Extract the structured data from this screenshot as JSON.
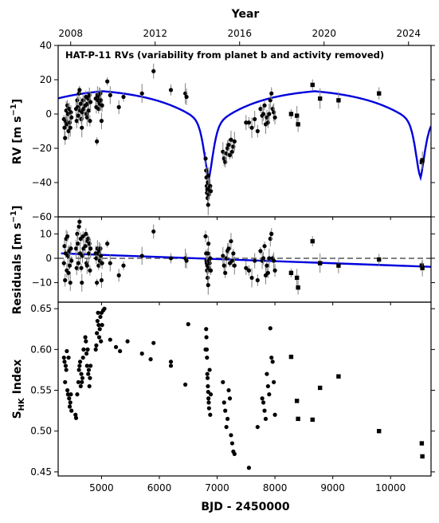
{
  "chart_data": [
    {
      "type": "scatter",
      "panel": "rv",
      "annotation": "HAT-P-11 RVs (variability from planet b and activity removed)",
      "ylabel_main": "RV [m s",
      "ylabel_sup": "−1",
      "ylabel_end": "]",
      "ylim": [
        -60,
        40
      ],
      "yticks": [
        "40",
        "20",
        "0",
        "−20",
        "−40",
        "−60"
      ],
      "ytick_values": [
        40,
        20,
        0,
        -20,
        -40,
        -60
      ],
      "grid": false,
      "model_color": "#0000dd",
      "points": [
        [
          4350,
          -3
        ],
        [
          4360,
          -8
        ],
        [
          4370,
          -14
        ],
        [
          4380,
          -4
        ],
        [
          4390,
          2
        ],
        [
          4400,
          -6
        ],
        [
          4410,
          5
        ],
        [
          4420,
          0
        ],
        [
          4430,
          -10
        ],
        [
          4440,
          3
        ],
        [
          4450,
          -5
        ],
        [
          4460,
          -8
        ],
        [
          4470,
          1
        ],
        [
          4480,
          -2
        ],
        [
          4560,
          3
        ],
        [
          4570,
          -4
        ],
        [
          4580,
          8
        ],
        [
          4590,
          4
        ],
        [
          4600,
          -1
        ],
        [
          4610,
          12
        ],
        [
          4620,
          14
        ],
        [
          4630,
          2
        ],
        [
          4640,
          6
        ],
        [
          4650,
          -3
        ],
        [
          4660,
          -8
        ],
        [
          4670,
          1
        ],
        [
          4680,
          8
        ],
        [
          4690,
          3
        ],
        [
          4720,
          5
        ],
        [
          4730,
          10
        ],
        [
          4740,
          0
        ],
        [
          4750,
          -2
        ],
        [
          4760,
          6
        ],
        [
          4770,
          9
        ],
        [
          4780,
          2
        ],
        [
          4790,
          11
        ],
        [
          4800,
          -4
        ],
        [
          4810,
          7
        ],
        [
          4900,
          9
        ],
        [
          4910,
          4
        ],
        [
          4920,
          -16
        ],
        [
          4930,
          11
        ],
        [
          4940,
          8
        ],
        [
          4950,
          3
        ],
        [
          4960,
          10
        ],
        [
          4970,
          6
        ],
        [
          4980,
          12
        ],
        [
          4990,
          8
        ],
        [
          5000,
          -4
        ],
        [
          5010,
          5
        ],
        [
          5100,
          19
        ],
        [
          5150,
          11
        ],
        [
          5300,
          4
        ],
        [
          5380,
          10
        ],
        [
          5700,
          12
        ],
        [
          5900,
          25
        ],
        [
          6200,
          14
        ],
        [
          6450,
          12
        ],
        [
          6470,
          10
        ],
        [
          6800,
          -26
        ],
        [
          6810,
          -33
        ],
        [
          6815,
          -37
        ],
        [
          6820,
          -42
        ],
        [
          6825,
          -46
        ],
        [
          6830,
          -44
        ],
        [
          6835,
          -49
        ],
        [
          6840,
          -40
        ],
        [
          6845,
          -53
        ],
        [
          6850,
          -36
        ],
        [
          6855,
          -47
        ],
        [
          6860,
          -44
        ],
        [
          6870,
          -43
        ],
        [
          6880,
          -42
        ],
        [
          6890,
          -45
        ],
        [
          7100,
          -22
        ],
        [
          7120,
          -26
        ],
        [
          7140,
          -28
        ],
        [
          7160,
          -23
        ],
        [
          7180,
          -20
        ],
        [
          7200,
          -18
        ],
        [
          7220,
          -24
        ],
        [
          7240,
          -15
        ],
        [
          7260,
          -22
        ],
        [
          7280,
          -19
        ],
        [
          7300,
          -16
        ],
        [
          7500,
          -5
        ],
        [
          7550,
          -5
        ],
        [
          7600,
          -8
        ],
        [
          7650,
          -3
        ],
        [
          7700,
          -10
        ],
        [
          7750,
          3
        ],
        [
          7780,
          -1
        ],
        [
          7800,
          0
        ],
        [
          7820,
          5
        ],
        [
          7840,
          -6
        ],
        [
          7860,
          -2
        ],
        [
          7880,
          -5
        ],
        [
          7900,
          0
        ],
        [
          7920,
          8
        ],
        [
          7940,
          12
        ],
        [
          7960,
          3
        ],
        [
          7980,
          1
        ],
        [
          8000,
          -2
        ]
      ],
      "square_points": [
        [
          8280,
          0
        ],
        [
          8380,
          -1
        ],
        [
          8400,
          -6
        ],
        [
          8650,
          17
        ],
        [
          8780,
          9
        ],
        [
          9100,
          8
        ],
        [
          9800,
          12
        ],
        [
          10540,
          -28
        ],
        [
          10550,
          -27
        ]
      ]
    },
    {
      "type": "scatter",
      "panel": "residuals",
      "ylabel": "Residuals [m s",
      "ylabel_sup": "−1",
      "ylabel_end": "]",
      "ylim": [
        -18,
        17
      ],
      "yticks": [
        "10",
        "0",
        "−10"
      ],
      "ytick_values": [
        10,
        0,
        -10
      ],
      "trend_start": [
        4300,
        2
      ],
      "trend_end": [
        10700,
        -3.5
      ],
      "points": [
        [
          4350,
          -2
        ],
        [
          4360,
          5
        ],
        [
          4370,
          -9
        ],
        [
          4380,
          2
        ],
        [
          4390,
          8
        ],
        [
          4400,
          -5
        ],
        [
          4410,
          9
        ],
        [
          4420,
          1
        ],
        [
          4430,
          -6
        ],
        [
          4440,
          3
        ],
        [
          4450,
          -3
        ],
        [
          4460,
          -10
        ],
        [
          4470,
          4
        ],
        [
          4480,
          -1
        ],
        [
          4560,
          4
        ],
        [
          4570,
          -4
        ],
        [
          4580,
          10
        ],
        [
          4590,
          6
        ],
        [
          4600,
          -2
        ],
        [
          4610,
          13
        ],
        [
          4620,
          15
        ],
        [
          4630,
          2
        ],
        [
          4640,
          8
        ],
        [
          4650,
          -4
        ],
        [
          4660,
          -10
        ],
        [
          4670,
          1
        ],
        [
          4680,
          9
        ],
        [
          4690,
          4
        ],
        [
          4720,
          5
        ],
        [
          4730,
          10
        ],
        [
          4740,
          -2
        ],
        [
          4750,
          -3
        ],
        [
          4760,
          7
        ],
        [
          4770,
          8
        ],
        [
          4780,
          2
        ],
        [
          4790,
          6
        ],
        [
          4800,
          -5
        ],
        [
          4810,
          4
        ],
        [
          4900,
          2
        ],
        [
          4910,
          0
        ],
        [
          4920,
          -10
        ],
        [
          4930,
          4
        ],
        [
          4940,
          2
        ],
        [
          4950,
          -3
        ],
        [
          4960,
          3
        ],
        [
          4970,
          -1
        ],
        [
          4980,
          4
        ],
        [
          4990,
          1
        ],
        [
          5000,
          -9
        ],
        [
          5010,
          -2
        ],
        [
          5100,
          6
        ],
        [
          5150,
          -2
        ],
        [
          5300,
          -7
        ],
        [
          5380,
          -3
        ],
        [
          5700,
          1
        ],
        [
          5900,
          11
        ],
        [
          6200,
          0
        ],
        [
          6450,
          0
        ],
        [
          6470,
          -1
        ],
        [
          6800,
          9
        ],
        [
          6810,
          2
        ],
        [
          6815,
          -1
        ],
        [
          6820,
          -2
        ],
        [
          6825,
          -5
        ],
        [
          6830,
          -3
        ],
        [
          6835,
          -8
        ],
        [
          6840,
          2
        ],
        [
          6845,
          -11
        ],
        [
          6850,
          6
        ],
        [
          6855,
          -4
        ],
        [
          6860,
          -1
        ],
        [
          6870,
          -2
        ],
        [
          6880,
          0
        ],
        [
          6890,
          -5
        ],
        [
          7100,
          1
        ],
        [
          7120,
          -3
        ],
        [
          7140,
          -6
        ],
        [
          7160,
          0
        ],
        [
          7180,
          3
        ],
        [
          7200,
          4
        ],
        [
          7220,
          -2
        ],
        [
          7240,
          7
        ],
        [
          7260,
          -1
        ],
        [
          7280,
          2
        ],
        [
          7300,
          -3
        ],
        [
          7500,
          -4
        ],
        [
          7550,
          -5
        ],
        [
          7600,
          -8
        ],
        [
          7650,
          -1
        ],
        [
          7700,
          -9
        ],
        [
          7750,
          3
        ],
        [
          7780,
          -1
        ],
        [
          7800,
          0
        ],
        [
          7820,
          5
        ],
        [
          7840,
          -7
        ],
        [
          7860,
          -3
        ],
        [
          7880,
          -6
        ],
        [
          7900,
          0
        ],
        [
          7920,
          8
        ],
        [
          7940,
          10
        ],
        [
          7960,
          0
        ],
        [
          7980,
          -1
        ],
        [
          8000,
          -5
        ]
      ],
      "square_points": [
        [
          8280,
          -6
        ],
        [
          8380,
          -8
        ],
        [
          8400,
          -12
        ],
        [
          8650,
          7
        ],
        [
          8780,
          -2
        ],
        [
          9100,
          -3
        ],
        [
          9800,
          -0.5
        ],
        [
          10540,
          -3
        ],
        [
          10550,
          -4
        ]
      ]
    },
    {
      "type": "scatter",
      "panel": "shk",
      "ylabel_main": "S",
      "ylabel_sub": "HK",
      "ylabel_end": " Index",
      "ylim": [
        0.445,
        0.658
      ],
      "yticks": [
        "0.65",
        "0.60",
        "0.55",
        "0.50",
        "0.45"
      ],
      "ytick_values": [
        0.65,
        0.6,
        0.55,
        0.5,
        0.45
      ],
      "points": [
        [
          4350,
          0.59
        ],
        [
          4360,
          0.585
        ],
        [
          4370,
          0.56
        ],
        [
          4380,
          0.58
        ],
        [
          4390,
          0.575
        ],
        [
          4400,
          0.598
        ],
        [
          4410,
          0.55
        ],
        [
          4420,
          0.545
        ],
        [
          4430,
          0.59
        ],
        [
          4440,
          0.54
        ],
        [
          4450,
          0.53
        ],
        [
          4460,
          0.535
        ],
        [
          4470,
          0.545
        ],
        [
          4480,
          0.525
        ],
        [
          4550,
          0.52
        ],
        [
          4560,
          0.516
        ],
        [
          4580,
          0.545
        ],
        [
          4600,
          0.56
        ],
        [
          4610,
          0.575
        ],
        [
          4620,
          0.58
        ],
        [
          4630,
          0.585
        ],
        [
          4640,
          0.555
        ],
        [
          4650,
          0.57
        ],
        [
          4660,
          0.56
        ],
        [
          4670,
          0.565
        ],
        [
          4680,
          0.59
        ],
        [
          4690,
          0.6
        ],
        [
          4720,
          0.615
        ],
        [
          4730,
          0.61
        ],
        [
          4740,
          0.595
        ],
        [
          4750,
          0.58
        ],
        [
          4760,
          0.6
        ],
        [
          4770,
          0.57
        ],
        [
          4780,
          0.575
        ],
        [
          4790,
          0.555
        ],
        [
          4800,
          0.565
        ],
        [
          4810,
          0.58
        ],
        [
          4900,
          0.6
        ],
        [
          4910,
          0.605
        ],
        [
          4920,
          0.62
        ],
        [
          4930,
          0.635
        ],
        [
          4940,
          0.645
        ],
        [
          4950,
          0.63
        ],
        [
          4960,
          0.615
        ],
        [
          4970,
          0.625
        ],
        [
          4980,
          0.64
        ],
        [
          4990,
          0.61
        ],
        [
          5000,
          0.645
        ],
        [
          5010,
          0.63
        ],
        [
          5030,
          0.648
        ],
        [
          5050,
          0.65
        ],
        [
          5150,
          0.612
        ],
        [
          5250,
          0.603
        ],
        [
          5320,
          0.598
        ],
        [
          5450,
          0.61
        ],
        [
          5700,
          0.595
        ],
        [
          5850,
          0.588
        ],
        [
          5900,
          0.608
        ],
        [
          6200,
          0.585
        ],
        [
          6200,
          0.58
        ],
        [
          6450,
          0.557
        ],
        [
          6500,
          0.631
        ],
        [
          6800,
          0.6
        ],
        [
          6810,
          0.625
        ],
        [
          6815,
          0.615
        ],
        [
          6820,
          0.6
        ],
        [
          6825,
          0.59
        ],
        [
          6830,
          0.57
        ],
        [
          6835,
          0.565
        ],
        [
          6840,
          0.555
        ],
        [
          6845,
          0.548
        ],
        [
          6850,
          0.54
        ],
        [
          6855,
          0.535
        ],
        [
          6860,
          0.528
        ],
        [
          6870,
          0.575
        ],
        [
          6880,
          0.52
        ],
        [
          6890,
          0.545
        ],
        [
          7100,
          0.56
        ],
        [
          7120,
          0.535
        ],
        [
          7140,
          0.525
        ],
        [
          7160,
          0.505
        ],
        [
          7180,
          0.515
        ],
        [
          7200,
          0.55
        ],
        [
          7220,
          0.54
        ],
        [
          7240,
          0.495
        ],
        [
          7260,
          0.485
        ],
        [
          7280,
          0.475
        ],
        [
          7300,
          0.472
        ],
        [
          7550,
          0.455
        ],
        [
          7700,
          0.505
        ],
        [
          7780,
          0.54
        ],
        [
          7800,
          0.535
        ],
        [
          7820,
          0.525
        ],
        [
          7840,
          0.515
        ],
        [
          7860,
          0.57
        ],
        [
          7880,
          0.555
        ],
        [
          7900,
          0.545
        ],
        [
          7920,
          0.626
        ],
        [
          7940,
          0.59
        ],
        [
          7960,
          0.585
        ],
        [
          7980,
          0.56
        ],
        [
          8000,
          0.52
        ]
      ],
      "square_points": [
        [
          8280,
          0.591
        ],
        [
          8380,
          0.537
        ],
        [
          8400,
          0.515
        ],
        [
          8650,
          0.514
        ],
        [
          8780,
          0.553
        ],
        [
          9100,
          0.567
        ],
        [
          9800,
          0.5
        ],
        [
          10540,
          0.485
        ],
        [
          10550,
          0.469
        ]
      ]
    }
  ],
  "axes": {
    "top_label": "Year",
    "top_ticks": [
      "2008",
      "2012",
      "2016",
      "2020",
      "2024"
    ],
    "top_tick_bjd": [
      4466.5,
      5927.5,
      7388.5,
      8849.5,
      10310.5
    ],
    "bottom_label": "BJD - 2450000",
    "bottom_ticks": [
      "5000",
      "6000",
      "7000",
      "8000",
      "9000",
      "10000"
    ],
    "bottom_tick_values": [
      5000,
      6000,
      7000,
      8000,
      9000,
      10000
    ],
    "xlim": [
      4250,
      10700
    ]
  }
}
